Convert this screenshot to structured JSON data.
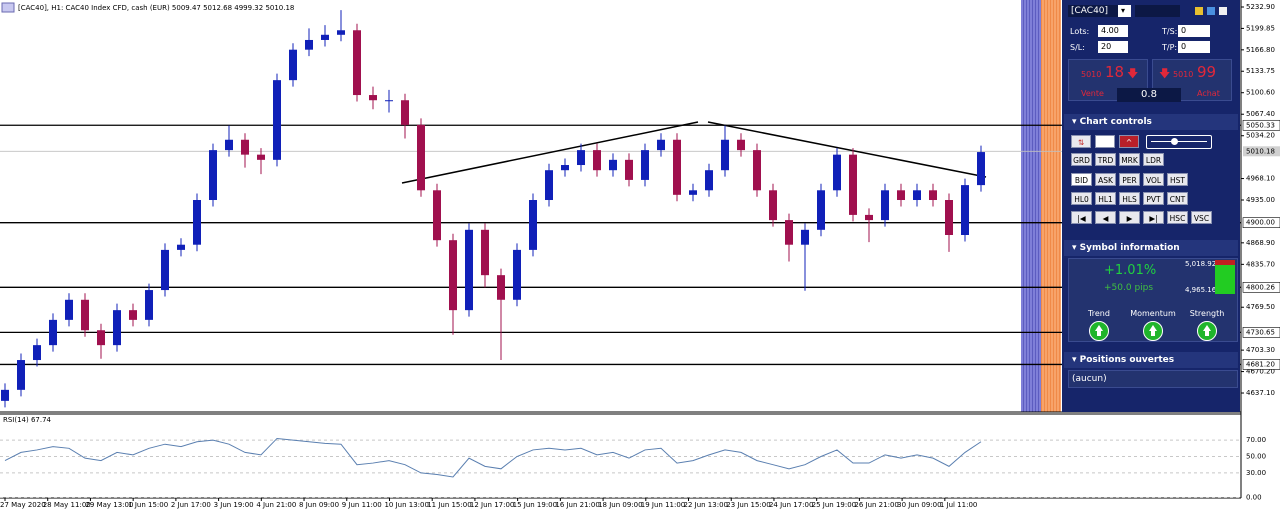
{
  "header": {
    "title": "[CAC40], H1:  CAC40 Index CFD, cash (EUR)  5009.47 5012.68 4999.32 5010.18"
  },
  "chart_data": [
    {
      "type": "candlestick",
      "open": [
        4625,
        4642,
        4688,
        4711,
        4750,
        4781,
        4734,
        4711,
        4765,
        4750,
        4796,
        4858,
        4866,
        4935,
        5012,
        5028,
        5005,
        4997,
        5120,
        5167,
        5182,
        5190,
        5197,
        5097,
        5089,
        5089,
        5051,
        4950,
        4873,
        4765,
        4889,
        4819,
        4781,
        4858,
        4935,
        4981,
        4989,
        5012,
        4981,
        4997,
        4966,
        5012,
        5028,
        4943,
        4950,
        4981,
        5028,
        5012,
        4950,
        4904,
        4866,
        4889,
        4950,
        5005,
        4912,
        4904,
        4950,
        4935,
        4950,
        4935,
        4881,
        4958
      ],
      "high": [
        4652,
        4698,
        4721,
        4760,
        4791,
        4791,
        4744,
        4775,
        4775,
        4806,
        4868,
        4876,
        4945,
        5022,
        5050,
        5038,
        5015,
        5130,
        5177,
        5200,
        5205,
        5228,
        5207,
        5110,
        5105,
        5099,
        5061,
        4960,
        4883,
        4899,
        4899,
        4829,
        4868,
        4945,
        4991,
        4999,
        5022,
        5022,
        5007,
        5007,
        5022,
        5038,
        5038,
        4960,
        4991,
        5050,
        5038,
        5022,
        4960,
        4914,
        4899,
        4960,
        5015,
        5015,
        4922,
        4960,
        4960,
        4960,
        4960,
        4945,
        4968,
        5019
      ],
      "low": [
        4615,
        4632,
        4678,
        4701,
        4740,
        4724,
        4690,
        4701,
        4740,
        4740,
        4786,
        4848,
        4856,
        4925,
        5002,
        4985,
        4975,
        4987,
        5110,
        5157,
        5172,
        5180,
        5087,
        5075,
        5070,
        5030,
        4940,
        4863,
        4727,
        4755,
        4800,
        4688,
        4771,
        4848,
        4925,
        4971,
        4979,
        4971,
        4971,
        4956,
        4956,
        5002,
        4933,
        4933,
        4940,
        4971,
        5002,
        4940,
        4894,
        4840,
        4795,
        4879,
        4940,
        4902,
        4870,
        4894,
        4925,
        4925,
        4925,
        4855,
        4871,
        4948
      ],
      "close": [
        4642,
        4688,
        4711,
        4750,
        4781,
        4734,
        4711,
        4765,
        4750,
        4796,
        4858,
        4866,
        4935,
        5012,
        5028,
        5005,
        4997,
        5120,
        5167,
        5182,
        5190,
        5197,
        5097,
        5089,
        5089,
        5051,
        4950,
        4873,
        4765,
        4889,
        4819,
        4781,
        4858,
        4935,
        4981,
        4989,
        5012,
        4981,
        4997,
        4966,
        5012,
        5028,
        4943,
        4950,
        4981,
        5028,
        5012,
        4950,
        4904,
        4866,
        4889,
        4950,
        5005,
        4912,
        4904,
        4950,
        4935,
        4950,
        4935,
        4881,
        4958,
        5009
      ],
      "up_color": "#1020b8",
      "down_color": "#a0104e",
      "ylim": [
        4607.8,
        5243.7
      ],
      "yticks": [
        {
          "value": 5232.9,
          "label": "5232.90"
        },
        {
          "value": 5199.85,
          "label": "5199.85"
        },
        {
          "value": 5166.8,
          "label": "5166.80"
        },
        {
          "value": 5133.75,
          "label": "5133.75"
        },
        {
          "value": 5100.6,
          "label": "5100.60"
        },
        {
          "value": 5067.4,
          "label": "5067.40"
        },
        {
          "value": 5034.2,
          "label": "5034.20"
        },
        {
          "value": 4968.1,
          "label": "4968.10"
        },
        {
          "value": 4935,
          "label": "4935.00"
        },
        {
          "value": 4868.9,
          "label": "4868.90"
        },
        {
          "value": 4835.7,
          "label": "4835.70"
        },
        {
          "value": 4769.5,
          "label": "4769.50"
        },
        {
          "value": 4703.3,
          "label": "4703.30"
        },
        {
          "value": 4670.2,
          "label": "4670.20"
        },
        {
          "value": 4637.1,
          "label": "4637.10"
        }
      ],
      "hlines": [
        {
          "value": 5050.33,
          "label": "5050.33"
        },
        {
          "value": 4900,
          "label": "4900.00"
        },
        {
          "value": 4800.26,
          "label": "4800.26"
        },
        {
          "value": 4730.65,
          "label": "4730.65"
        },
        {
          "value": 4681.2,
          "label": "4681.20"
        }
      ],
      "current_price": {
        "value": 5010.18,
        "label": "5010.18"
      },
      "xticks": [
        {
          "value": 0,
          "label": "27 May 2020"
        },
        {
          "value": 2.67,
          "label": "28 May 11:00"
        },
        {
          "value": 5.34,
          "label": "29 May 13:00"
        },
        {
          "value": 8.01,
          "label": "1 Jun 15:00"
        },
        {
          "value": 10.68,
          "label": "2 Jun 17:00"
        },
        {
          "value": 13.35,
          "label": "3 Jun 19:00"
        },
        {
          "value": 16.02,
          "label": "4 Jun 21:00"
        },
        {
          "value": 18.69,
          "label": "8 Jun 09:00"
        },
        {
          "value": 21.36,
          "label": "9 Jun 11:00"
        },
        {
          "value": 24.03,
          "label": "10 Jun 13:00"
        },
        {
          "value": 26.7,
          "label": "11 Jun 15:00"
        },
        {
          "value": 29.37,
          "label": "12 Jun 17:00"
        },
        {
          "value": 32.04,
          "label": "15 Jun 19:00"
        },
        {
          "value": 34.71,
          "label": "16 Jun 21:00"
        },
        {
          "value": 37.38,
          "label": "18 Jun 09:00"
        },
        {
          "value": 40.05,
          "label": "19 Jun 11:00"
        },
        {
          "value": 42.72,
          "label": "22 Jun 13:00"
        },
        {
          "value": 45.39,
          "label": "23 Jun 15:00"
        },
        {
          "value": 48.06,
          "label": "24 Jun 17:00"
        },
        {
          "value": 50.73,
          "label": "25 Jun 19:00"
        },
        {
          "value": 53.4,
          "label": "26 Jun 21:00"
        },
        {
          "value": 56.07,
          "label": "30 Jun 09:00"
        },
        {
          "value": 58.74,
          "label": "1 Jul 11:00"
        }
      ]
    },
    {
      "type": "line",
      "title": "RSI(14) 67.74",
      "color": "#5a7fb0",
      "values": [
        45,
        55,
        58,
        62,
        60,
        48,
        45,
        55,
        52,
        60,
        65,
        62,
        68,
        70,
        65,
        55,
        52,
        72,
        70,
        68,
        66,
        65,
        40,
        42,
        45,
        40,
        30,
        28,
        25,
        48,
        38,
        35,
        50,
        58,
        60,
        58,
        60,
        52,
        55,
        48,
        58,
        60,
        42,
        45,
        52,
        58,
        55,
        45,
        40,
        35,
        40,
        50,
        58,
        42,
        42,
        52,
        48,
        52,
        48,
        38,
        55,
        68
      ],
      "ylim": [
        0,
        100
      ],
      "yticks": [
        {
          "value": 70,
          "label": "70.00"
        },
        {
          "value": 50,
          "label": "50.00"
        },
        {
          "value": 30,
          "label": "30.00"
        },
        {
          "value": 0,
          "label": "0.00"
        }
      ]
    }
  ],
  "panel": {
    "symbol": "[CAC40]",
    "lots_label": "Lots:",
    "lots": "4.00",
    "ts_label": "T/S:",
    "ts": "0",
    "sl_label": "S/L:",
    "sl": "20",
    "tp_label": "T/P:",
    "tp": "0",
    "sell": {
      "price_main": "5010",
      "price_pips": "18",
      "label": "Vente"
    },
    "spread": "0.8",
    "buy": {
      "price_main": "5010",
      "price_pips": "99",
      "label": "Achat"
    },
    "chart_controls": {
      "title": "Chart controls",
      "rows": [
        [
          "GRD",
          "TRD",
          "MRK",
          "LDR"
        ],
        [
          "BID",
          "ASK",
          "PER",
          "VOL",
          "HST"
        ],
        [
          "HL0",
          "HL1",
          "HLS",
          "PVT",
          "CNT"
        ],
        [
          "|◀",
          "◀",
          "▶",
          "▶|",
          "HSC",
          "VSC"
        ]
      ]
    },
    "symbol_information": {
      "title": "Symbol information",
      "change": "+1.01%",
      "pips": "+50.0 pips",
      "high": "5,018.92",
      "low": "4,965.16",
      "indicators": [
        "Trend",
        "Momentum",
        "Strength"
      ]
    },
    "positions": {
      "title": "Positions ouvertes",
      "content": "(aucun)"
    }
  }
}
